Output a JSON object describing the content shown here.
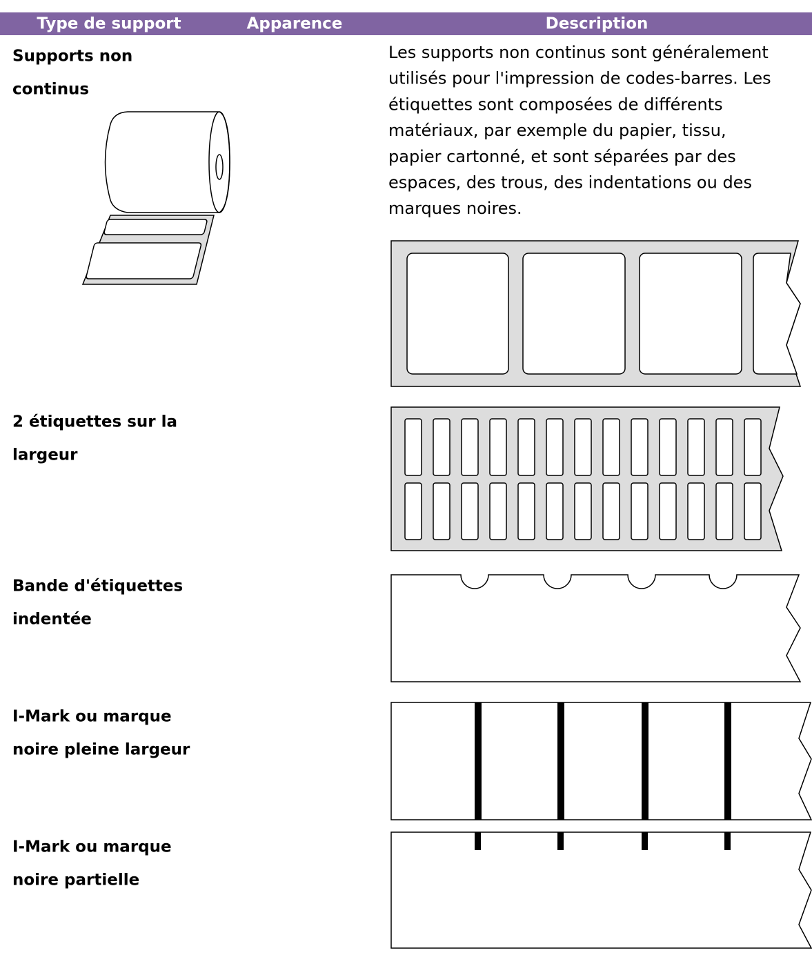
{
  "table": {
    "header": [
      "Type de support",
      "Apparence",
      "Description"
    ],
    "rows": [
      {
        "label": [
          "Supports non",
          "continus"
        ],
        "description": [
          "Les supports non continus sont généralement",
          "utilisés pour l'impression de codes-barres. Les",
          "étiquettes sont composées de différents",
          "matériaux, par exemple du papier, tissu,",
          "papier cartonné, et sont séparées par des",
          "espaces, des trous, des indentations ou des",
          "marques noires."
        ]
      },
      {
        "label": [
          "2 étiquettes sur la",
          "largeur"
        ]
      },
      {
        "label": [
          "Bande d'étiquettes",
          "indentée"
        ]
      },
      {
        "label": [
          "I-Mark ou marque",
          "noire pleine largeur"
        ]
      },
      {
        "label": [
          "I-Mark ou marque",
          "noire partielle"
        ]
      }
    ]
  }
}
